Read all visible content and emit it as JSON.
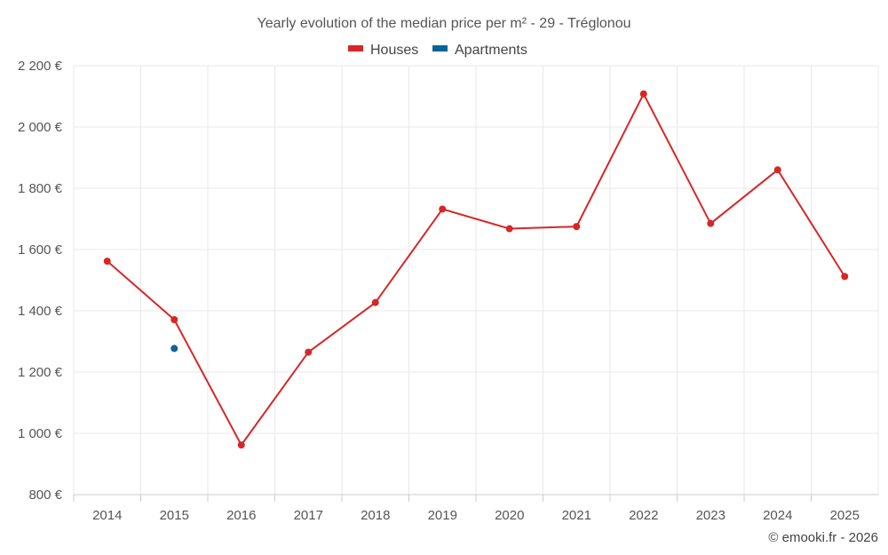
{
  "chart_data": {
    "type": "line",
    "title": "Yearly evolution of the median price per m² - 29 - Tréglonou",
    "categories": [
      "2014",
      "2015",
      "2016",
      "2017",
      "2018",
      "2019",
      "2020",
      "2021",
      "2022",
      "2023",
      "2024",
      "2025"
    ],
    "series": [
      {
        "name": "Houses",
        "color": "#d62728",
        "values": [
          1562,
          1371,
          962,
          1265,
          1427,
          1732,
          1668,
          1675,
          2108,
          1685,
          1860,
          1512
        ]
      },
      {
        "name": "Apartments",
        "color": "#0a6496",
        "values": [
          null,
          1277,
          null,
          null,
          null,
          null,
          null,
          null,
          null,
          null,
          null,
          null
        ]
      }
    ],
    "yticks": [
      800,
      1000,
      1200,
      1400,
      1600,
      1800,
      2000,
      2200
    ],
    "ytick_labels": [
      "800 €",
      "1 000 €",
      "1 200 €",
      "1 400 €",
      "1 600 €",
      "1 800 €",
      "2 000 €",
      "2 200 €"
    ],
    "ylim": [
      800,
      2200
    ],
    "xlabel": "",
    "ylabel": "",
    "legend_position": "top-center",
    "grid": true
  },
  "credit": "© emooki.fr - 2026"
}
